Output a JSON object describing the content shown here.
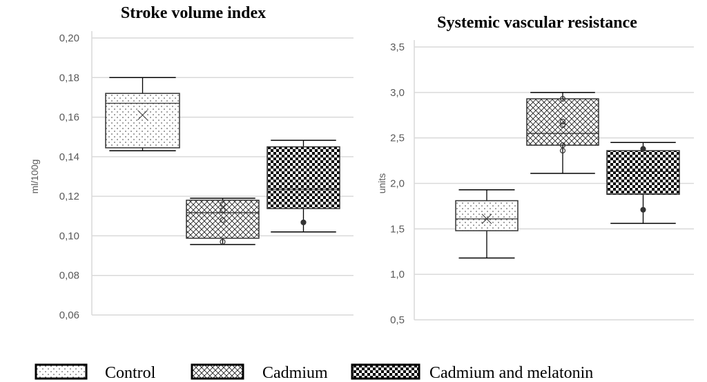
{
  "chart_data": [
    {
      "type": "box",
      "title": "Stroke volume index",
      "ylabel": "ml/100g",
      "ylim": [
        0.06,
        0.2
      ],
      "ticks": [
        "0,06",
        "0,08",
        "0,10",
        "0,12",
        "0,14",
        "0,16",
        "0,18",
        "0,20"
      ],
      "grid": true,
      "series": [
        {
          "name": "Control",
          "whisker_low": 0.143,
          "q1": 0.1445,
          "median": 0.167,
          "q3": 0.172,
          "whisker_high": 0.18,
          "mean": 0.161,
          "points": []
        },
        {
          "name": "Cadmium",
          "whisker_low": 0.0956,
          "q1": 0.0988,
          "median": 0.1117,
          "q3": 0.118,
          "whisker_high": 0.119,
          "mean": 0.11,
          "points": [
            0.116,
            0.113,
            0.108,
            0.097
          ]
        },
        {
          "name": "Cadmium and melatonin",
          "whisker_low": 0.102,
          "q1": 0.1138,
          "median": 0.1236,
          "q3": 0.145,
          "whisker_high": 0.1483,
          "mean": 0.126,
          "points": [
            0.1068
          ]
        }
      ]
    },
    {
      "type": "box",
      "title": "Systemic vascular resistance",
      "ylabel": "units",
      "ylim": [
        0.5,
        3.5
      ],
      "ticks": [
        "0,5",
        "1,0",
        "1,5",
        "2,0",
        "2,5",
        "3,0",
        "3,5"
      ],
      "grid": true,
      "series": [
        {
          "name": "Control",
          "whisker_low": 1.18,
          "q1": 1.48,
          "median": 1.61,
          "q3": 1.81,
          "whisker_high": 1.93,
          "mean": 1.61,
          "points": []
        },
        {
          "name": "Cadmium",
          "whisker_low": 2.11,
          "q1": 2.42,
          "median": 2.55,
          "q3": 2.93,
          "whisker_high": 3.0,
          "mean": 2.64,
          "points": [
            2.93,
            2.68,
            2.64,
            2.42,
            2.36
          ]
        },
        {
          "name": "Cadmium and melatonin",
          "whisker_low": 1.56,
          "q1": 1.88,
          "median": 2.13,
          "q3": 2.36,
          "whisker_high": 2.45,
          "mean": 2.12,
          "points": [
            2.38,
            1.71
          ]
        }
      ]
    }
  ],
  "legend": {
    "placement": "bottom",
    "items": [
      "Control",
      "Cadmium",
      "Cadmium and melatonin"
    ]
  },
  "colors": {
    "grid": "#d9d9d9",
    "ink": "#000000",
    "tick": "#595959"
  }
}
